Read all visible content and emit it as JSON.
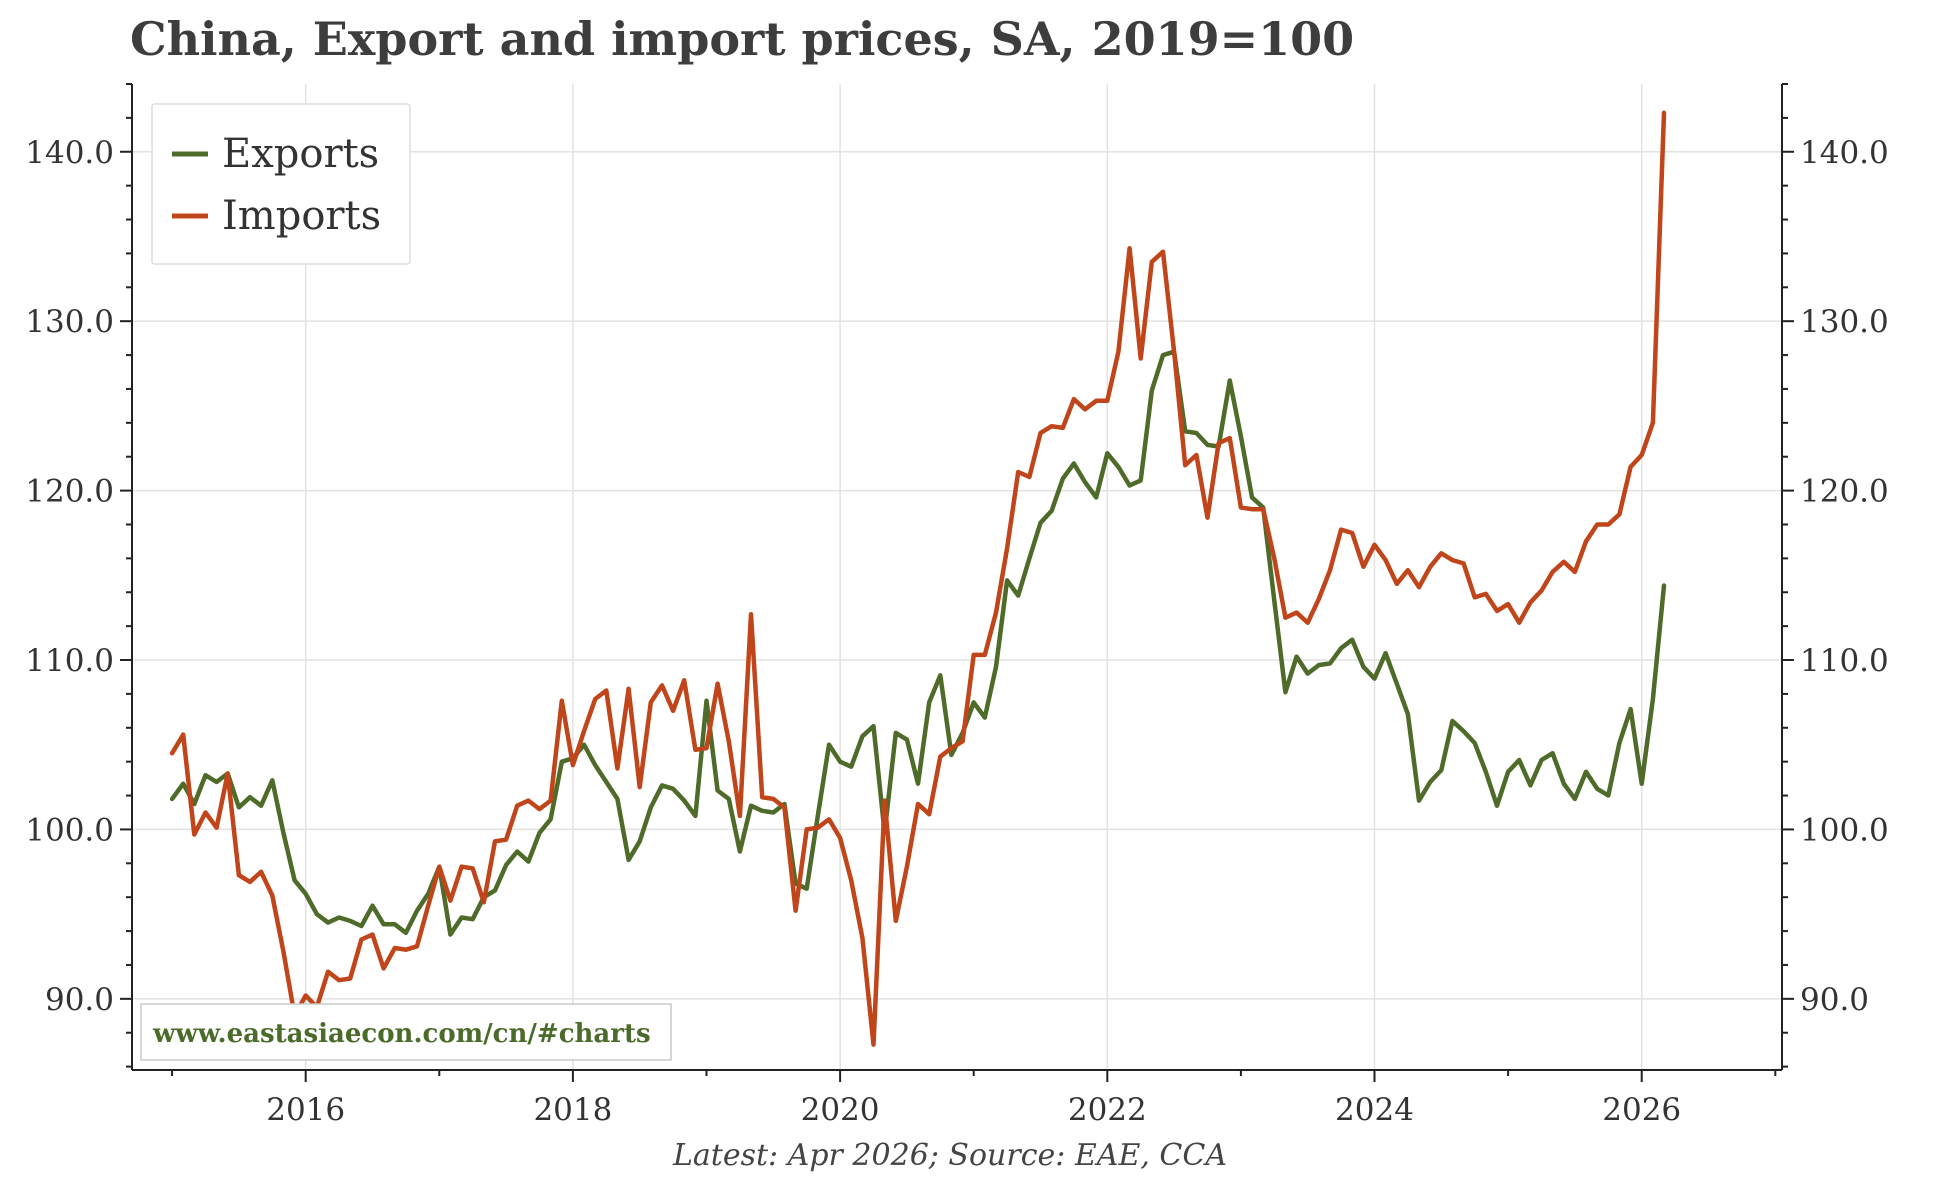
{
  "chart_data": {
    "type": "line",
    "title": "China, Export and import prices, SA, 2019=100",
    "xlabel": "",
    "ylabel": "",
    "xlim": [
      2014.7,
      2027.05
    ],
    "ylim": [
      85.8,
      144.0
    ],
    "x_ticks": [
      2016,
      2018,
      2020,
      2022,
      2024,
      2026
    ],
    "x_tick_labels": [
      "2016",
      "2018",
      "2020",
      "2022",
      "2024",
      "2026"
    ],
    "y_ticks": [
      90,
      100,
      110,
      120,
      130,
      140
    ],
    "y_tick_labels": [
      "90.0",
      "100.0",
      "110.0",
      "120.0",
      "130.0",
      "140.0"
    ],
    "grid": true,
    "legend_position": "top-left",
    "source": "Latest: Apr 2026; Source: EAE, CCA",
    "watermark": "www.eastasiaecon.com/cn/#charts",
    "start": "2015-01",
    "frequency": "monthly",
    "series": [
      {
        "name": "Exports",
        "color": "#4f6b2a",
        "values": [
          101.8,
          102.7,
          101.5,
          103.2,
          102.8,
          103.3,
          101.3,
          101.9,
          101.4,
          102.9,
          99.8,
          97.0,
          96.2,
          95.0,
          94.5,
          94.8,
          94.6,
          94.3,
          95.5,
          94.4,
          94.4,
          93.9,
          95.2,
          96.2,
          97.8,
          93.8,
          94.8,
          94.7,
          96.0,
          96.4,
          97.9,
          98.7,
          98.1,
          99.8,
          100.6,
          104.0,
          104.2,
          105.0,
          103.8,
          102.8,
          101.8,
          98.2,
          99.3,
          101.3,
          102.6,
          102.4,
          101.7,
          100.8,
          107.6,
          102.3,
          101.8,
          98.7,
          101.4,
          101.1,
          101.0,
          101.5,
          96.8,
          96.5,
          100.8,
          105.0,
          104.0,
          103.7,
          105.5,
          106.1,
          99.8,
          105.7,
          105.3,
          102.7,
          107.5,
          109.1,
          104.4,
          105.7,
          107.5,
          106.6,
          109.6,
          114.7,
          113.8,
          116.0,
          118.1,
          118.8,
          120.7,
          121.6,
          120.5,
          119.6,
          122.2,
          121.4,
          120.3,
          120.6,
          125.9,
          128.0,
          128.2,
          123.5,
          123.4,
          122.7,
          122.6,
          126.5,
          123.2,
          119.6,
          119.0,
          113.5,
          108.1,
          110.2,
          109.2,
          109.7,
          109.8,
          110.7,
          111.2,
          109.6,
          108.9,
          110.4,
          108.6,
          106.8,
          101.7,
          102.8,
          103.5,
          106.4,
          105.8,
          105.1,
          103.4,
          101.4,
          103.4,
          104.1,
          102.6,
          104.1,
          104.5,
          102.7,
          101.8,
          103.4,
          102.4,
          102.0,
          105.1,
          107.1,
          102.7,
          107.7,
          114.4
        ]
      },
      {
        "name": "Imports",
        "color": "#c0451a",
        "values": [
          104.5,
          105.6,
          99.7,
          101.0,
          100.1,
          103.3,
          97.3,
          96.9,
          97.5,
          96.1,
          92.8,
          89.0,
          90.2,
          89.5,
          91.6,
          91.1,
          91.2,
          93.5,
          93.8,
          91.8,
          93.0,
          92.9,
          93.1,
          95.5,
          97.8,
          95.8,
          97.8,
          97.7,
          95.7,
          99.3,
          99.4,
          101.4,
          101.7,
          101.2,
          101.7,
          107.6,
          103.8,
          105.8,
          107.7,
          108.2,
          103.6,
          108.3,
          102.5,
          107.5,
          108.5,
          107.0,
          108.8,
          104.7,
          104.8,
          108.6,
          105.2,
          100.8,
          112.7,
          101.9,
          101.8,
          101.3,
          95.2,
          100.0,
          100.1,
          100.6,
          99.5,
          97.0,
          93.6,
          87.3,
          101.7,
          94.6,
          97.8,
          101.5,
          100.9,
          104.3,
          104.8,
          105.2,
          110.3,
          110.3,
          112.8,
          116.6,
          121.1,
          120.8,
          123.4,
          123.8,
          123.7,
          125.4,
          124.8,
          125.3,
          125.3,
          128.2,
          134.3,
          127.8,
          133.5,
          134.1,
          128.2,
          121.5,
          122.1,
          118.4,
          122.8,
          123.1,
          119.0,
          118.9,
          118.9,
          116.0,
          112.5,
          112.8,
          112.2,
          113.6,
          115.3,
          117.7,
          117.5,
          115.5,
          116.8,
          115.9,
          114.5,
          115.3,
          114.3,
          115.5,
          116.3,
          115.9,
          115.7,
          113.7,
          113.9,
          112.9,
          113.3,
          112.2,
          113.4,
          114.1,
          115.2,
          115.8,
          115.2,
          117.0,
          118.0,
          118.0,
          118.6,
          121.4,
          122.1,
          124.0,
          142.3
        ]
      }
    ]
  }
}
